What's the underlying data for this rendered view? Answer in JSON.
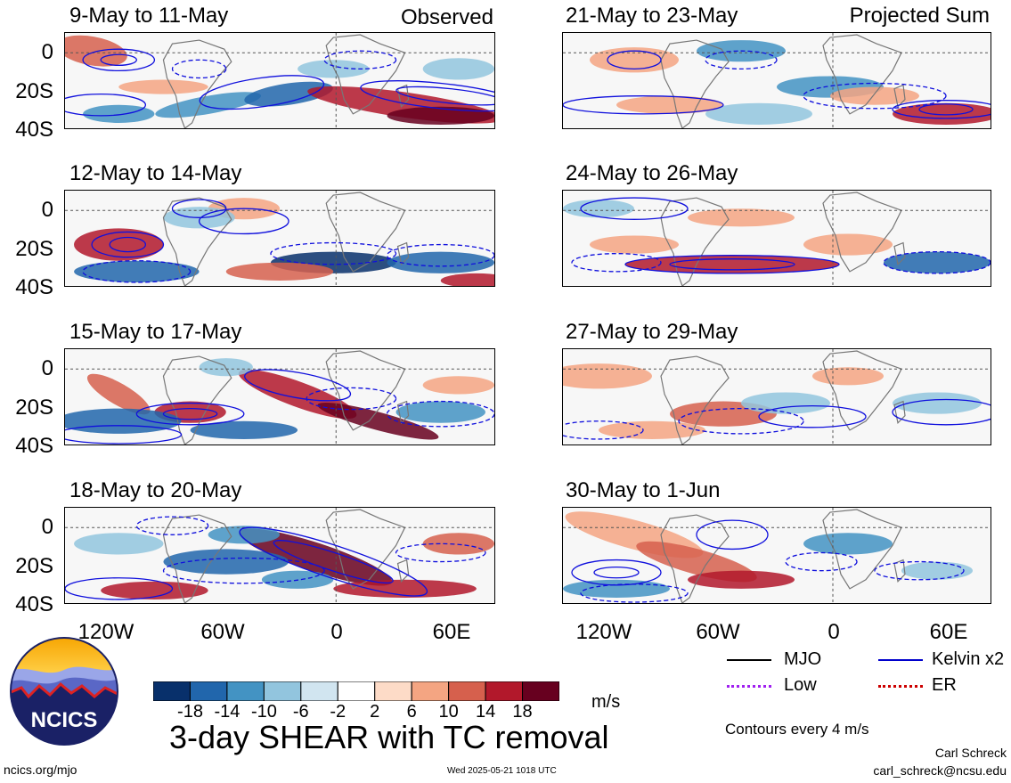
{
  "panels": {
    "left": [
      {
        "title": "9-May to 11-May",
        "corner": "Observed"
      },
      {
        "title": "12-May to 14-May",
        "corner": ""
      },
      {
        "title": "15-May to 17-May",
        "corner": ""
      },
      {
        "title": "18-May to 20-May",
        "corner": ""
      }
    ],
    "right": [
      {
        "title": "21-May to 23-May",
        "corner": "Projected Sum"
      },
      {
        "title": "24-May to 26-May",
        "corner": ""
      },
      {
        "title": "27-May to 29-May",
        "corner": ""
      },
      {
        "title": "30-May to 1-Jun",
        "corner": ""
      }
    ]
  },
  "axes": {
    "lat_labels": [
      "0",
      "20S",
      "40S"
    ],
    "lon_labels": [
      "120W",
      "60W",
      "0",
      "60E"
    ]
  },
  "colorbar": {
    "ticks": [
      "-18",
      "-14",
      "-10",
      "-6",
      "-2",
      "2",
      "6",
      "10",
      "14",
      "18"
    ],
    "colors": [
      "#08306b",
      "#2166ac",
      "#4393c3",
      "#92c5de",
      "#d1e5f0",
      "#ffffff",
      "#fddbc7",
      "#f4a582",
      "#d6604d",
      "#b2182b",
      "#67001f"
    ],
    "unit": "m/s"
  },
  "title": "3-day SHEAR with TC removal",
  "legend": {
    "items": [
      {
        "label": "MJO",
        "color": "#000000",
        "style": "solid"
      },
      {
        "label": "Kelvin x2",
        "color": "#0000cc",
        "style": "solid"
      },
      {
        "label": "Low",
        "color": "#a020f0",
        "style": "dotted"
      },
      {
        "label": "ER",
        "color": "#cc0000",
        "style": "dotted"
      }
    ],
    "contours_note": "Contours every 4 m/s"
  },
  "logo": {
    "text": "NCICS"
  },
  "footer": {
    "website": "ncics.org/mjo",
    "timestamp": "Wed 2025-05-21 1018 UTC",
    "author": "Carl Schreck",
    "email": "carl_schreck@ncsu.edu"
  }
}
